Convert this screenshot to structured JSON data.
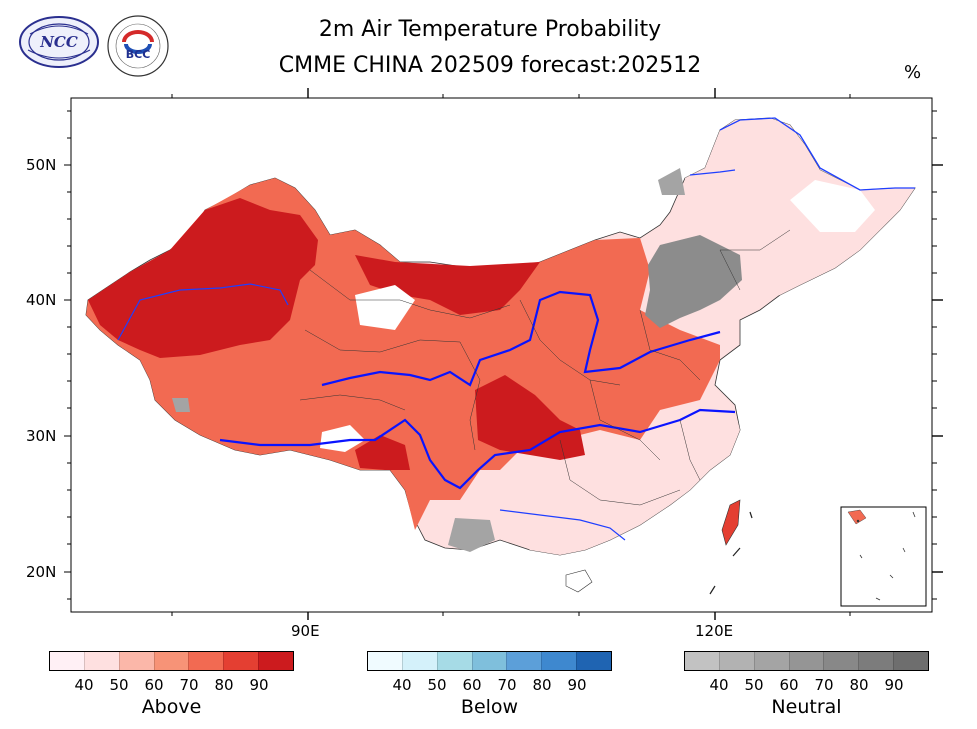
{
  "title": {
    "line1": "2m Air Temperature Probability",
    "line2": "CMME CHINA 202509 forecast:202512",
    "unit": "%"
  },
  "logos": {
    "left": "NCC",
    "right": "BCC"
  },
  "axes": {
    "lat_labels": [
      "50N",
      "40N",
      "30N",
      "20N"
    ],
    "lon_labels": [
      "90E",
      "120E"
    ]
  },
  "colorbars": [
    {
      "name": "Above",
      "ticks": [
        "40",
        "50",
        "60",
        "70",
        "80",
        "90"
      ],
      "colors": [
        "#fff0f5",
        "#fee0e0",
        "#fbb7a9",
        "#f79377",
        "#f26a52",
        "#e43f32",
        "#cc1b1e"
      ]
    },
    {
      "name": "Below",
      "ticks": [
        "40",
        "50",
        "60",
        "70",
        "80",
        "90"
      ],
      "colors": [
        "#f0fbff",
        "#d4f1fa",
        "#a6dbe6",
        "#7fbfdc",
        "#5c9fd9",
        "#3e88cf",
        "#1f64b2"
      ]
    },
    {
      "name": "Neutral",
      "ticks": [
        "40",
        "50",
        "60",
        "70",
        "80",
        "90"
      ],
      "colors": [
        "#c2c2c2",
        "#b2b2b2",
        "#a4a4a4",
        "#959595",
        "#888888",
        "#7c7c7c",
        "#6e6e6e"
      ]
    }
  ]
}
